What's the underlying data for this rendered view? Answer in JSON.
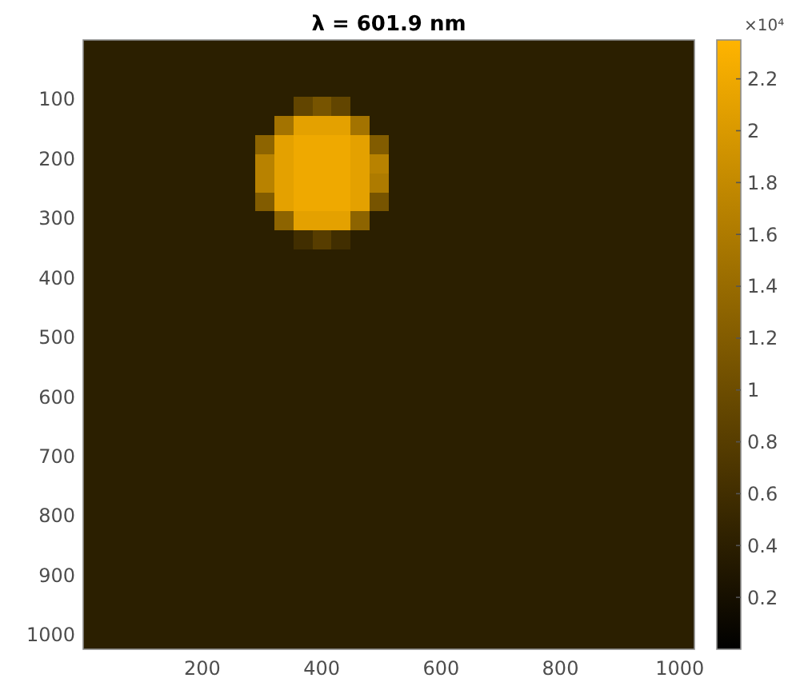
{
  "chart_data": {
    "type": "heatmap",
    "title": "λ = 601.9 nm",
    "xlim": [
      0.5,
      1024.5
    ],
    "xticks": [
      200,
      400,
      600,
      800,
      1000
    ],
    "ylim": [
      1024.5,
      0.5
    ],
    "yticks": [
      100,
      200,
      300,
      400,
      500,
      600,
      700,
      800,
      900,
      1000
    ],
    "clim": [
      0,
      2.35
    ],
    "cticks": [
      0.2,
      0.4,
      0.6,
      0.8,
      1,
      1.2,
      1.4,
      1.6,
      1.8,
      2,
      2.2
    ],
    "clabel": "×10⁴",
    "cells": [
      [
        0.4,
        0.4,
        0.4,
        0.4,
        0.4,
        0.4,
        0.4,
        0.4,
        0.4,
        0.4,
        0.4,
        0.4,
        0.4,
        0.4,
        0.4,
        0.4,
        0.4,
        0.4,
        0.4,
        0.4,
        0.4,
        0.4,
        0.4,
        0.4,
        0.4,
        0.4,
        0.4,
        0.4,
        0.4,
        0.4,
        0.4,
        0.4
      ],
      [
        0.4,
        0.4,
        0.4,
        0.4,
        0.4,
        0.4,
        0.4,
        0.4,
        0.4,
        0.4,
        0.4,
        0.4,
        0.4,
        0.4,
        0.4,
        0.4,
        0.4,
        0.4,
        0.4,
        0.4,
        0.4,
        0.4,
        0.4,
        0.4,
        0.4,
        0.4,
        0.4,
        0.4,
        0.4,
        0.4,
        0.4,
        0.4
      ],
      [
        0.4,
        0.4,
        0.4,
        0.4,
        0.4,
        0.4,
        0.4,
        0.4,
        0.4,
        0.4,
        0.4,
        0.4,
        0.4,
        0.4,
        0.4,
        0.4,
        0.4,
        0.4,
        0.4,
        0.4,
        0.4,
        0.4,
        0.4,
        0.4,
        0.4,
        0.4,
        0.4,
        0.4,
        0.4,
        0.4,
        0.4,
        0.4
      ],
      [
        0.4,
        0.4,
        0.4,
        0.4,
        0.4,
        0.4,
        0.4,
        0.4,
        0.4,
        0.4,
        0.4,
        0.9,
        1.1,
        0.9,
        0.4,
        0.4,
        0.4,
        0.4,
        0.4,
        0.4,
        0.4,
        0.4,
        0.4,
        0.4,
        0.4,
        0.4,
        0.4,
        0.4,
        0.4,
        0.4,
        0.4,
        0.4
      ],
      [
        0.4,
        0.4,
        0.4,
        0.4,
        0.4,
        0.4,
        0.4,
        0.4,
        0.4,
        0.4,
        1.5,
        2.1,
        2.1,
        2.1,
        1.5,
        0.4,
        0.4,
        0.4,
        0.4,
        0.4,
        0.4,
        0.4,
        0.4,
        0.4,
        0.4,
        0.4,
        0.4,
        0.4,
        0.4,
        0.4,
        0.4,
        0.4
      ],
      [
        0.4,
        0.4,
        0.4,
        0.4,
        0.4,
        0.4,
        0.4,
        0.4,
        0.4,
        1.3,
        2.1,
        2.2,
        2.2,
        2.2,
        2.1,
        1.2,
        0.4,
        0.4,
        0.4,
        0.4,
        0.4,
        0.4,
        0.4,
        0.4,
        0.4,
        0.4,
        0.4,
        0.4,
        0.4,
        0.4,
        0.4,
        0.4
      ],
      [
        0.4,
        0.4,
        0.4,
        0.4,
        0.4,
        0.4,
        0.4,
        0.4,
        0.4,
        1.7,
        2.1,
        2.2,
        2.2,
        2.2,
        2.1,
        1.7,
        0.4,
        0.4,
        0.4,
        0.4,
        0.4,
        0.4,
        0.4,
        0.4,
        0.4,
        0.4,
        0.4,
        0.4,
        0.4,
        0.4,
        0.4,
        0.4
      ],
      [
        0.4,
        0.4,
        0.4,
        0.4,
        0.4,
        0.4,
        0.4,
        0.4,
        0.4,
        1.7,
        2.1,
        2.2,
        2.2,
        2.2,
        2.1,
        1.6,
        0.4,
        0.4,
        0.4,
        0.4,
        0.4,
        0.4,
        0.4,
        0.4,
        0.4,
        0.4,
        0.4,
        0.4,
        0.4,
        0.4,
        0.4,
        0.4
      ],
      [
        0.4,
        0.4,
        0.4,
        0.4,
        0.4,
        0.4,
        0.4,
        0.4,
        0.4,
        1.2,
        2.1,
        2.2,
        2.2,
        2.2,
        2.1,
        1.1,
        0.4,
        0.4,
        0.4,
        0.4,
        0.4,
        0.4,
        0.4,
        0.4,
        0.4,
        0.4,
        0.4,
        0.4,
        0.4,
        0.4,
        0.4,
        0.4
      ],
      [
        0.4,
        0.4,
        0.4,
        0.4,
        0.4,
        0.4,
        0.4,
        0.4,
        0.4,
        0.4,
        1.3,
        2.1,
        2.1,
        2.1,
        1.3,
        0.4,
        0.4,
        0.4,
        0.4,
        0.4,
        0.4,
        0.4,
        0.4,
        0.4,
        0.4,
        0.4,
        0.4,
        0.4,
        0.4,
        0.4,
        0.4,
        0.4
      ],
      [
        0.4,
        0.4,
        0.4,
        0.4,
        0.4,
        0.4,
        0.4,
        0.4,
        0.4,
        0.4,
        0.4,
        0.6,
        0.8,
        0.6,
        0.4,
        0.4,
        0.4,
        0.4,
        0.4,
        0.4,
        0.4,
        0.4,
        0.4,
        0.4,
        0.4,
        0.4,
        0.4,
        0.4,
        0.4,
        0.4,
        0.4,
        0.4
      ],
      [
        0.4,
        0.4,
        0.4,
        0.4,
        0.4,
        0.4,
        0.4,
        0.4,
        0.4,
        0.4,
        0.4,
        0.4,
        0.4,
        0.4,
        0.4,
        0.4,
        0.4,
        0.4,
        0.4,
        0.4,
        0.4,
        0.4,
        0.4,
        0.4,
        0.4,
        0.4,
        0.4,
        0.4,
        0.4,
        0.4,
        0.4,
        0.4
      ],
      [
        0.4,
        0.4,
        0.4,
        0.4,
        0.4,
        0.4,
        0.4,
        0.4,
        0.4,
        0.4,
        0.4,
        0.4,
        0.4,
        0.4,
        0.4,
        0.4,
        0.4,
        0.4,
        0.4,
        0.4,
        0.4,
        0.4,
        0.4,
        0.4,
        0.4,
        0.4,
        0.4,
        0.4,
        0.4,
        0.4,
        0.4,
        0.4
      ],
      [
        0.4,
        0.4,
        0.4,
        0.4,
        0.4,
        0.4,
        0.4,
        0.4,
        0.4,
        0.4,
        0.4,
        0.4,
        0.4,
        0.4,
        0.4,
        0.4,
        0.4,
        0.4,
        0.4,
        0.4,
        0.4,
        0.4,
        0.4,
        0.4,
        0.4,
        0.4,
        0.4,
        0.4,
        0.4,
        0.4,
        0.4,
        0.4
      ],
      [
        0.4,
        0.4,
        0.4,
        0.4,
        0.4,
        0.4,
        0.4,
        0.4,
        0.4,
        0.4,
        0.4,
        0.4,
        0.4,
        0.4,
        0.4,
        0.4,
        0.4,
        0.4,
        0.4,
        0.4,
        0.4,
        0.4,
        0.4,
        0.4,
        0.4,
        0.4,
        0.4,
        0.4,
        0.4,
        0.4,
        0.4,
        0.4
      ],
      [
        0.4,
        0.4,
        0.4,
        0.4,
        0.4,
        0.4,
        0.4,
        0.4,
        0.4,
        0.4,
        0.4,
        0.4,
        0.4,
        0.4,
        0.4,
        0.4,
        0.4,
        0.4,
        0.4,
        0.4,
        0.4,
        0.4,
        0.4,
        0.4,
        0.4,
        0.4,
        0.4,
        0.4,
        0.4,
        0.4,
        0.4,
        0.4
      ],
      [
        0.4,
        0.4,
        0.4,
        0.4,
        0.4,
        0.4,
        0.4,
        0.4,
        0.4,
        0.4,
        0.4,
        0.4,
        0.4,
        0.4,
        0.4,
        0.4,
        0.4,
        0.4,
        0.4,
        0.4,
        0.4,
        0.4,
        0.4,
        0.4,
        0.4,
        0.4,
        0.4,
        0.4,
        0.4,
        0.4,
        0.4,
        0.4
      ],
      [
        0.4,
        0.4,
        0.4,
        0.4,
        0.4,
        0.4,
        0.4,
        0.4,
        0.4,
        0.4,
        0.4,
        0.4,
        0.4,
        0.4,
        0.4,
        0.4,
        0.4,
        0.4,
        0.4,
        0.4,
        0.4,
        0.4,
        0.4,
        0.4,
        0.4,
        0.4,
        0.4,
        0.4,
        0.4,
        0.4,
        0.4,
        0.4
      ],
      [
        0.4,
        0.4,
        0.4,
        0.4,
        0.4,
        0.4,
        0.4,
        0.4,
        0.4,
        0.4,
        0.4,
        0.4,
        0.4,
        0.4,
        0.4,
        0.4,
        0.4,
        0.4,
        0.4,
        0.4,
        0.4,
        0.4,
        0.4,
        0.4,
        0.4,
        0.4,
        0.4,
        0.4,
        0.4,
        0.4,
        0.4,
        0.4
      ],
      [
        0.4,
        0.4,
        0.4,
        0.4,
        0.4,
        0.4,
        0.4,
        0.4,
        0.4,
        0.4,
        0.4,
        0.4,
        0.4,
        0.4,
        0.4,
        0.4,
        0.4,
        0.4,
        0.4,
        0.4,
        0.4,
        0.4,
        0.4,
        0.4,
        0.4,
        0.4,
        0.4,
        0.4,
        0.4,
        0.4,
        0.4,
        0.4
      ],
      [
        0.4,
        0.4,
        0.4,
        0.4,
        0.4,
        0.4,
        0.4,
        0.4,
        0.4,
        0.4,
        0.4,
        0.4,
        0.4,
        0.4,
        0.4,
        0.4,
        0.4,
        0.4,
        0.4,
        0.4,
        0.4,
        0.4,
        0.4,
        0.4,
        0.4,
        0.4,
        0.4,
        0.4,
        0.4,
        0.4,
        0.4,
        0.4
      ],
      [
        0.4,
        0.4,
        0.4,
        0.4,
        0.4,
        0.4,
        0.4,
        0.4,
        0.4,
        0.4,
        0.4,
        0.4,
        0.4,
        0.4,
        0.4,
        0.4,
        0.4,
        0.4,
        0.4,
        0.4,
        0.4,
        0.4,
        0.4,
        0.4,
        0.4,
        0.4,
        0.4,
        0.4,
        0.4,
        0.4,
        0.4,
        0.4
      ],
      [
        0.4,
        0.4,
        0.4,
        0.4,
        0.4,
        0.4,
        0.4,
        0.4,
        0.4,
        0.4,
        0.4,
        0.4,
        0.4,
        0.4,
        0.4,
        0.4,
        0.4,
        0.4,
        0.4,
        0.4,
        0.4,
        0.4,
        0.4,
        0.4,
        0.4,
        0.4,
        0.4,
        0.4,
        0.4,
        0.4,
        0.4,
        0.4
      ],
      [
        0.4,
        0.4,
        0.4,
        0.4,
        0.4,
        0.4,
        0.4,
        0.4,
        0.4,
        0.4,
        0.4,
        0.4,
        0.4,
        0.4,
        0.4,
        0.4,
        0.4,
        0.4,
        0.4,
        0.4,
        0.4,
        0.4,
        0.4,
        0.4,
        0.4,
        0.4,
        0.4,
        0.4,
        0.4,
        0.4,
        0.4,
        0.4
      ],
      [
        0.4,
        0.4,
        0.4,
        0.4,
        0.4,
        0.4,
        0.4,
        0.4,
        0.4,
        0.4,
        0.4,
        0.4,
        0.4,
        0.4,
        0.4,
        0.4,
        0.4,
        0.4,
        0.4,
        0.4,
        0.4,
        0.4,
        0.4,
        0.4,
        0.4,
        0.4,
        0.4,
        0.4,
        0.4,
        0.4,
        0.4,
        0.4
      ],
      [
        0.4,
        0.4,
        0.4,
        0.4,
        0.4,
        0.4,
        0.4,
        0.4,
        0.4,
        0.4,
        0.4,
        0.4,
        0.4,
        0.4,
        0.4,
        0.4,
        0.4,
        0.4,
        0.4,
        0.4,
        0.4,
        0.4,
        0.4,
        0.4,
        0.4,
        0.4,
        0.4,
        0.4,
        0.4,
        0.4,
        0.4,
        0.4
      ],
      [
        0.4,
        0.4,
        0.4,
        0.4,
        0.4,
        0.4,
        0.4,
        0.4,
        0.4,
        0.4,
        0.4,
        0.4,
        0.4,
        0.4,
        0.4,
        0.4,
        0.4,
        0.4,
        0.4,
        0.4,
        0.4,
        0.4,
        0.4,
        0.4,
        0.4,
        0.4,
        0.4,
        0.4,
        0.4,
        0.4,
        0.4,
        0.4
      ],
      [
        0.4,
        0.4,
        0.4,
        0.4,
        0.4,
        0.4,
        0.4,
        0.4,
        0.4,
        0.4,
        0.4,
        0.4,
        0.4,
        0.4,
        0.4,
        0.4,
        0.4,
        0.4,
        0.4,
        0.4,
        0.4,
        0.4,
        0.4,
        0.4,
        0.4,
        0.4,
        0.4,
        0.4,
        0.4,
        0.4,
        0.4,
        0.4
      ],
      [
        0.4,
        0.4,
        0.4,
        0.4,
        0.4,
        0.4,
        0.4,
        0.4,
        0.4,
        0.4,
        0.4,
        0.4,
        0.4,
        0.4,
        0.4,
        0.4,
        0.4,
        0.4,
        0.4,
        0.4,
        0.4,
        0.4,
        0.4,
        0.4,
        0.4,
        0.4,
        0.4,
        0.4,
        0.4,
        0.4,
        0.4,
        0.4
      ],
      [
        0.4,
        0.4,
        0.4,
        0.4,
        0.4,
        0.4,
        0.4,
        0.4,
        0.4,
        0.4,
        0.4,
        0.4,
        0.4,
        0.4,
        0.4,
        0.4,
        0.4,
        0.4,
        0.4,
        0.4,
        0.4,
        0.4,
        0.4,
        0.4,
        0.4,
        0.4,
        0.4,
        0.4,
        0.4,
        0.4,
        0.4,
        0.4
      ],
      [
        0.4,
        0.4,
        0.4,
        0.4,
        0.4,
        0.4,
        0.4,
        0.4,
        0.4,
        0.4,
        0.4,
        0.4,
        0.4,
        0.4,
        0.4,
        0.4,
        0.4,
        0.4,
        0.4,
        0.4,
        0.4,
        0.4,
        0.4,
        0.4,
        0.4,
        0.4,
        0.4,
        0.4,
        0.4,
        0.4,
        0.4,
        0.4
      ],
      [
        0.4,
        0.4,
        0.4,
        0.4,
        0.4,
        0.4,
        0.4,
        0.4,
        0.4,
        0.4,
        0.4,
        0.4,
        0.4,
        0.4,
        0.4,
        0.4,
        0.4,
        0.4,
        0.4,
        0.4,
        0.4,
        0.4,
        0.4,
        0.4,
        0.4,
        0.4,
        0.4,
        0.4,
        0.4,
        0.4,
        0.4,
        0.4
      ]
    ]
  }
}
